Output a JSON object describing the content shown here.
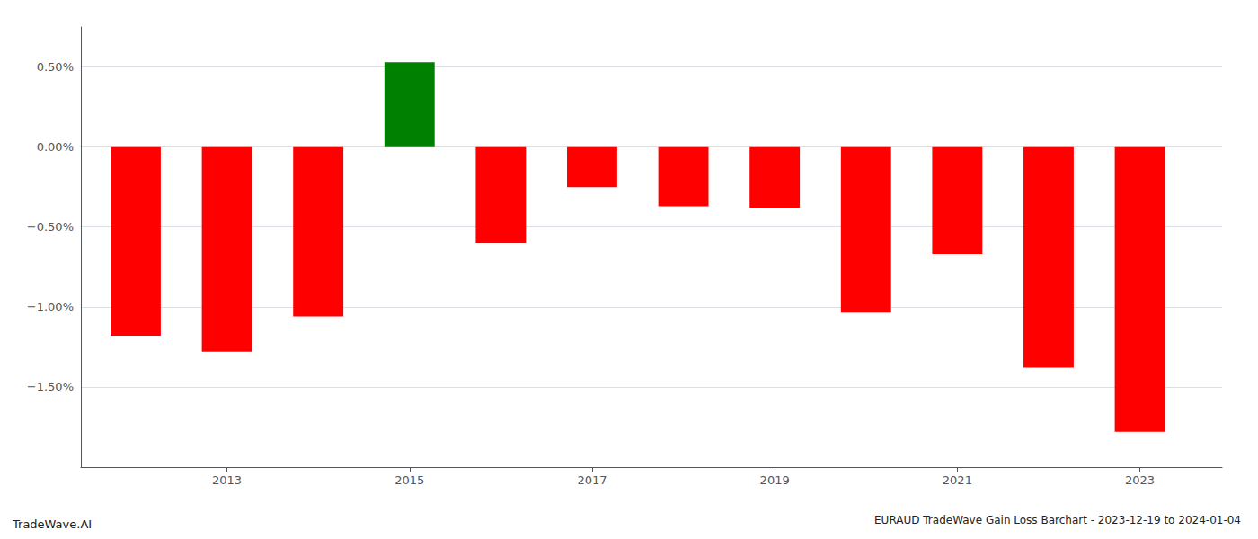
{
  "chart_data": {
    "type": "bar",
    "title": "EURAUD TradeWave Gain Loss Barchart - 2023-12-19 to 2024-01-04",
    "annotations": [
      "TradeWave.AI"
    ],
    "x": [
      2012,
      2013,
      2014,
      2015,
      2016,
      2017,
      2018,
      2019,
      2020,
      2021,
      2022,
      2023
    ],
    "values": [
      -1.18,
      -1.28,
      -1.06,
      0.53,
      -0.6,
      -0.25,
      -0.37,
      -0.38,
      -1.03,
      -0.67,
      -1.38,
      -1.78
    ],
    "colors": [
      "red",
      "red",
      "red",
      "green",
      "red",
      "red",
      "red",
      "red",
      "red",
      "red",
      "red",
      "red"
    ],
    "xlim": [
      2011.4,
      2023.9
    ],
    "xticks": [
      2013,
      2015,
      2017,
      2019,
      2021,
      2023
    ],
    "ylim": [
      -2.0,
      0.75
    ],
    "yticks": [
      {
        "value": -1.5,
        "label": "−1.50%"
      },
      {
        "value": -1.0,
        "label": "−1.00%"
      },
      {
        "value": -0.5,
        "label": "−0.50%"
      },
      {
        "value": 0.0,
        "label": "0.00%"
      },
      {
        "value": 0.5,
        "label": "0.50%"
      }
    ],
    "grid": true
  }
}
